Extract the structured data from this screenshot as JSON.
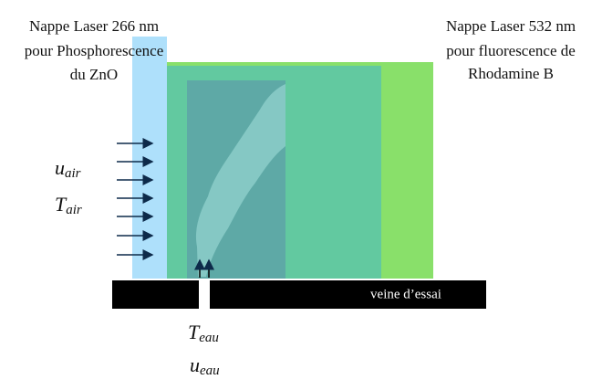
{
  "left_label": {
    "lines": [
      "Nappe Laser 266 nm",
      "pour Phosphorescence",
      "du ZnO"
    ]
  },
  "right_label": {
    "lines": [
      "Nappe Laser 532 nm",
      "pour fluorescence de",
      "Rhodamine B"
    ]
  },
  "air_velocity": {
    "symbol": "u",
    "subscript": "air"
  },
  "air_temperature": {
    "symbol": "T",
    "subscript": "air"
  },
  "water_temperature": {
    "symbol": "T",
    "subscript": "eau"
  },
  "water_velocity": {
    "symbol": "u",
    "subscript": "eau"
  },
  "channel_label": "veine d’essai"
}
